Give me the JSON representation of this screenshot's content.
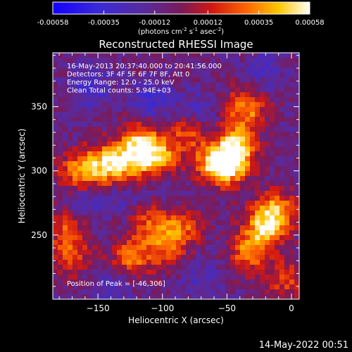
{
  "colorbar": {
    "ticks": [
      "-0.00058",
      "-0.00035",
      "-0.00012",
      "0.00012",
      "0.00035",
      "0.00058"
    ],
    "unit_main": "(photons cm",
    "unit_e1": "-2",
    "unit_mid": " s",
    "unit_e2": "-1",
    "unit_tail": " asec",
    "unit_e3": "-2",
    "unit_close": ")"
  },
  "info_lines": [
    "16-May-2013 20:37:40.000 to 20:41:56.000",
    "Detectors: 3F 4F 5F 6F 7F 8F, Att 0",
    "Energy Range: 12.0 - 25.0 keV",
    "Clean     Total counts: 5.94E+03"
  ],
  "peak_label": "Position of Peak = [-46,306]",
  "footer_timestamp": "14-May-2022 00:51",
  "chart_data": {
    "type": "heatmap",
    "title": "Reconstructed RHESSI Image",
    "xlabel": "Heliocentric X (arcsec)",
    "ylabel": "Heliocentric Y (arcsec)",
    "xlim": [
      -185,
      6
    ],
    "ylim": [
      200,
      392
    ],
    "xticks": [
      -150,
      -100,
      -50,
      0
    ],
    "yticks": [
      250,
      300,
      350
    ],
    "colormap": "rainbow-heat (blue-purple-red-orange-yellow-white)",
    "value_range": [
      -0.00058,
      0.00058
    ],
    "peak": [
      -46,
      306
    ],
    "bright_regions": [
      {
        "x": -118,
        "y": 322,
        "value": 0.00052
      },
      {
        "x": -103,
        "y": 310,
        "value": 0.0005
      },
      {
        "x": -128,
        "y": 305,
        "value": 0.00044
      },
      {
        "x": -146,
        "y": 305,
        "value": 0.00048
      },
      {
        "x": -165,
        "y": 300,
        "value": 0.0004
      },
      {
        "x": -60,
        "y": 305,
        "value": 0.0005
      },
      {
        "x": -46,
        "y": 306,
        "value": 0.00058
      },
      {
        "x": -43,
        "y": 322,
        "value": 0.00042
      },
      {
        "x": -35,
        "y": 349,
        "value": 0.00044
      },
      {
        "x": -12,
        "y": 268,
        "value": 0.0005
      },
      {
        "x": -22,
        "y": 255,
        "value": 0.00045
      },
      {
        "x": -33,
        "y": 236,
        "value": 0.0004
      },
      {
        "x": -110,
        "y": 262,
        "value": 0.0003
      },
      {
        "x": -125,
        "y": 232,
        "value": 0.00038
      },
      {
        "x": -100,
        "y": 240,
        "value": 0.00032
      },
      {
        "x": -85,
        "y": 255,
        "value": 0.00036
      },
      {
        "x": -170,
        "y": 232,
        "value": 0.0003
      },
      {
        "x": -175,
        "y": 255,
        "value": 0.0003
      },
      {
        "x": -80,
        "y": 330,
        "value": 0.00034
      },
      {
        "x": -5,
        "y": 215,
        "value": 0.00028
      }
    ],
    "dark_regions": [
      {
        "x": -155,
        "y": 365,
        "value": -0.0003
      },
      {
        "x": -108,
        "y": 355,
        "value": -0.00028
      },
      {
        "x": -72,
        "y": 345,
        "value": -0.00025
      },
      {
        "x": -20,
        "y": 380,
        "value": -0.00022
      },
      {
        "x": -160,
        "y": 275,
        "value": -0.0002
      },
      {
        "x": -130,
        "y": 280,
        "value": -0.00018
      },
      {
        "x": -140,
        "y": 210,
        "value": -0.00026
      },
      {
        "x": -70,
        "y": 215,
        "value": -0.0002
      },
      {
        "x": -95,
        "y": 285,
        "value": -0.00015
      }
    ]
  }
}
